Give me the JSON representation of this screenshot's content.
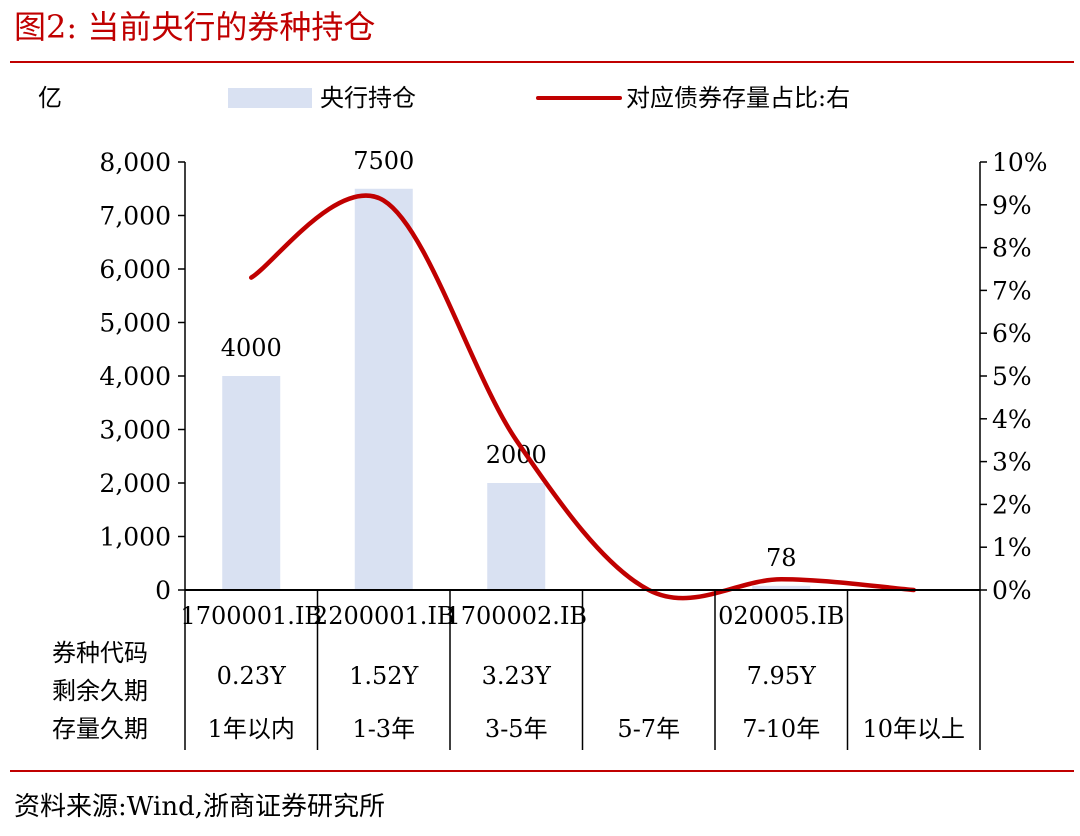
{
  "title": "图2:   当前央行的券种持仓",
  "source": "资料来源:Wind,浙商证券研究所",
  "colors": {
    "accent": "#C00000",
    "bar": "#D9E1F2",
    "line": "#C00000",
    "axis": "#000000"
  },
  "chart_data": {
    "type": "bar",
    "title": "",
    "y_unit_label": "亿",
    "ylim_left": [
      0,
      8000
    ],
    "ylim_right": [
      0,
      10
    ],
    "left_ticks": [
      "0",
      "1,000",
      "2,000",
      "3,000",
      "4,000",
      "5,000",
      "6,000",
      "7,000",
      "8,000"
    ],
    "right_ticks": [
      "0%",
      "1%",
      "2%",
      "3%",
      "4%",
      "5%",
      "6%",
      "7%",
      "8%",
      "9%",
      "10%"
    ],
    "categories": [
      "1年以内",
      "1-3年",
      "3-5年",
      "5-7年",
      "7-10年",
      "10年以上"
    ],
    "legend": {
      "bar_label": "央行持仓",
      "line_label": "对应债券存量占比:右"
    },
    "series": [
      {
        "name": "央行持仓",
        "type": "bar",
        "axis": "left",
        "values": [
          4000,
          7500,
          2000,
          0,
          78,
          0
        ],
        "labels": [
          "4000",
          "7500",
          "2000",
          "",
          "78",
          ""
        ]
      },
      {
        "name": "对应债券存量占比:右",
        "type": "line",
        "axis": "right",
        "values": [
          7.3,
          9.1,
          3.5,
          0,
          0.25,
          0
        ]
      }
    ],
    "table": {
      "row_labels": [
        "券种代码",
        "剩余久期",
        "存量久期"
      ],
      "codes": [
        "1700001.IB",
        "2200001.IB",
        "1700002.IB",
        "",
        "020005.IB",
        ""
      ],
      "durations": [
        "0.23Y",
        "1.52Y",
        "3.23Y",
        "",
        "7.95Y",
        ""
      ]
    }
  }
}
